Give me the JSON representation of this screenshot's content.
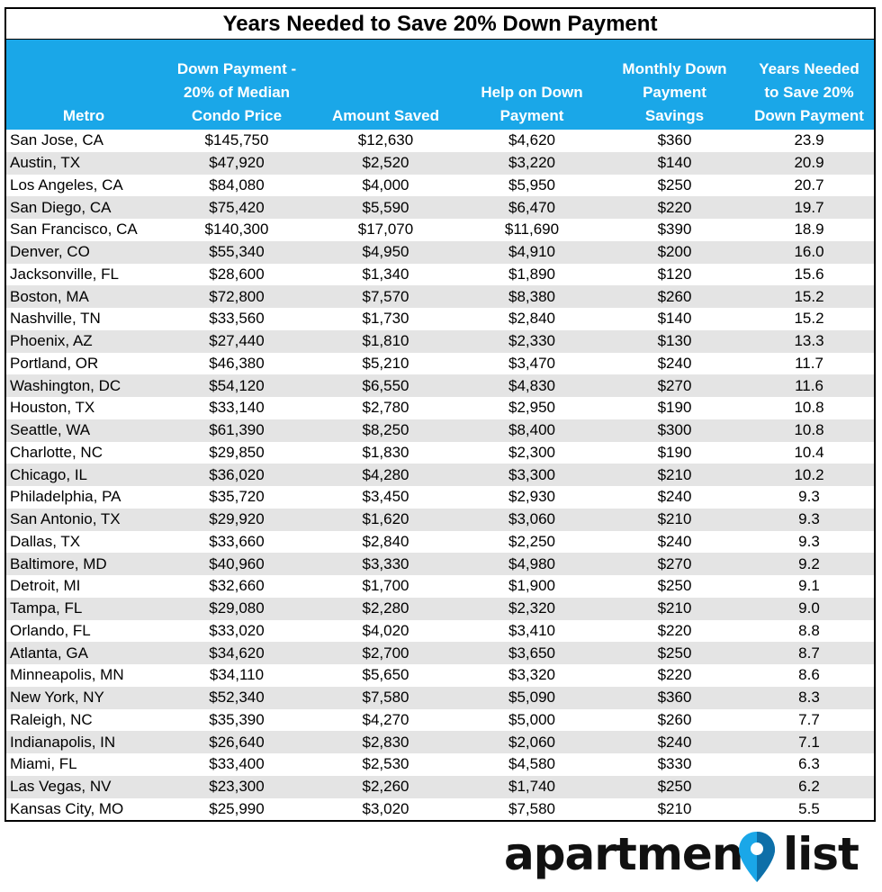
{
  "title": "Years Needed to Save 20% Down Payment",
  "columns": [
    "Metro",
    "Down Payment -\n20% of Median\nCondo Price",
    "Amount Saved",
    "Help on Down\nPayment",
    "Monthly Down\nPayment\nSavings",
    "Years Needed\nto Save 20%\nDown Payment"
  ],
  "rows": [
    [
      "San Jose, CA",
      "$145,750",
      "$12,630",
      "$4,620",
      "$360",
      "23.9"
    ],
    [
      "Austin, TX",
      "$47,920",
      "$2,520",
      "$3,220",
      "$140",
      "20.9"
    ],
    [
      "Los Angeles, CA",
      "$84,080",
      "$4,000",
      "$5,950",
      "$250",
      "20.7"
    ],
    [
      "San Diego, CA",
      "$75,420",
      "$5,590",
      "$6,470",
      "$220",
      "19.7"
    ],
    [
      "San Francisco, CA",
      "$140,300",
      "$17,070",
      "$11,690",
      "$390",
      "18.9"
    ],
    [
      "Denver, CO",
      "$55,340",
      "$4,950",
      "$4,910",
      "$200",
      "16.0"
    ],
    [
      "Jacksonville, FL",
      "$28,600",
      "$1,340",
      "$1,890",
      "$120",
      "15.6"
    ],
    [
      "Boston, MA",
      "$72,800",
      "$7,570",
      "$8,380",
      "$260",
      "15.2"
    ],
    [
      "Nashville, TN",
      "$33,560",
      "$1,730",
      "$2,840",
      "$140",
      "15.2"
    ],
    [
      "Phoenix, AZ",
      "$27,440",
      "$1,810",
      "$2,330",
      "$130",
      "13.3"
    ],
    [
      "Portland, OR",
      "$46,380",
      "$5,210",
      "$3,470",
      "$240",
      "11.7"
    ],
    [
      "Washington, DC",
      "$54,120",
      "$6,550",
      "$4,830",
      "$270",
      "11.6"
    ],
    [
      "Houston, TX",
      "$33,140",
      "$2,780",
      "$2,950",
      "$190",
      "10.8"
    ],
    [
      "Seattle, WA",
      "$61,390",
      "$8,250",
      "$8,400",
      "$300",
      "10.8"
    ],
    [
      "Charlotte, NC",
      "$29,850",
      "$1,830",
      "$2,300",
      "$190",
      "10.4"
    ],
    [
      "Chicago, IL",
      "$36,020",
      "$4,280",
      "$3,300",
      "$210",
      "10.2"
    ],
    [
      "Philadelphia, PA",
      "$35,720",
      "$3,450",
      "$2,930",
      "$240",
      "9.3"
    ],
    [
      "San Antonio, TX",
      "$29,920",
      "$1,620",
      "$3,060",
      "$210",
      "9.3"
    ],
    [
      "Dallas, TX",
      "$33,660",
      "$2,840",
      "$2,250",
      "$240",
      "9.3"
    ],
    [
      "Baltimore, MD",
      "$40,960",
      "$3,330",
      "$4,980",
      "$270",
      "9.2"
    ],
    [
      "Detroit, MI",
      "$32,660",
      "$1,700",
      "$1,900",
      "$250",
      "9.1"
    ],
    [
      "Tampa, FL",
      "$29,080",
      "$2,280",
      "$2,320",
      "$210",
      "9.0"
    ],
    [
      "Orlando, FL",
      "$33,020",
      "$4,020",
      "$3,410",
      "$220",
      "8.8"
    ],
    [
      "Atlanta, GA",
      "$34,620",
      "$2,700",
      "$3,650",
      "$250",
      "8.7"
    ],
    [
      "Minneapolis, MN",
      "$34,110",
      "$5,650",
      "$3,320",
      "$220",
      "8.6"
    ],
    [
      "New York, NY",
      "$52,340",
      "$7,580",
      "$5,090",
      "$360",
      "8.3"
    ],
    [
      "Raleigh, NC",
      "$35,390",
      "$4,270",
      "$5,000",
      "$260",
      "7.7"
    ],
    [
      "Indianapolis, IN",
      "$26,640",
      "$2,830",
      "$2,060",
      "$240",
      "7.1"
    ],
    [
      "Miami, FL",
      "$33,400",
      "$2,530",
      "$4,580",
      "$330",
      "6.3"
    ],
    [
      "Las Vegas, NV",
      "$23,300",
      "$2,260",
      "$1,740",
      "$250",
      "6.2"
    ],
    [
      "Kansas City, MO",
      "$25,990",
      "$3,020",
      "$7,580",
      "$210",
      "5.5"
    ]
  ],
  "logo": {
    "text_left": "apartment",
    "text_right": "list",
    "pin_icon": "map-pin-icon"
  },
  "colors": {
    "header_bg": "#1aa7e8",
    "alt_row": "#e4e4e4",
    "pin_blue": "#1aa7e8",
    "pin_dark": "#0e6fa8"
  }
}
